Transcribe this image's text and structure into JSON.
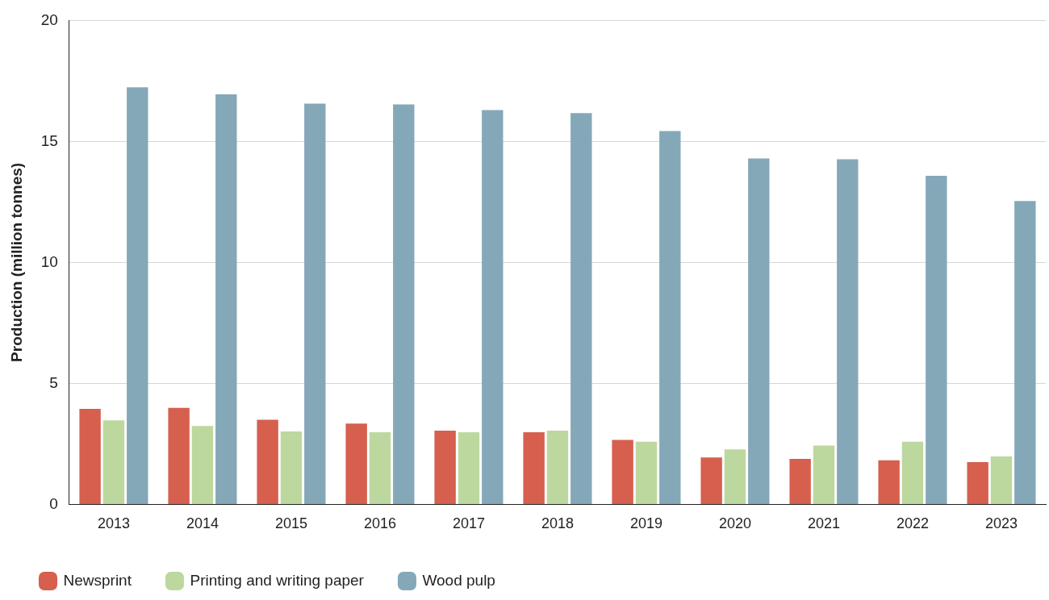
{
  "chart_data": {
    "type": "bar",
    "ylabel": "Production (million tonnes)",
    "categories": [
      "2013",
      "2014",
      "2015",
      "2016",
      "2017",
      "2018",
      "2019",
      "2020",
      "2021",
      "2022",
      "2023"
    ],
    "series": [
      {
        "name": "Newsprint",
        "color": "#d65f4e",
        "values": [
          3.95,
          3.99,
          3.5,
          3.34,
          3.05,
          2.98,
          2.66,
          1.94,
          1.88,
          1.82,
          1.75
        ]
      },
      {
        "name": "Printing and writing paper",
        "color": "#bdd89e",
        "values": [
          3.47,
          3.24,
          3.01,
          2.98,
          2.98,
          3.05,
          2.59,
          2.27,
          2.43,
          2.59,
          1.98
        ]
      },
      {
        "name": "Wood pulp",
        "color": "#84a8b8",
        "values": [
          17.24,
          16.95,
          16.56,
          16.53,
          16.3,
          16.17,
          15.43,
          14.3,
          14.26,
          13.58,
          12.54
        ]
      }
    ],
    "ylim": [
      0,
      20
    ],
    "yticks": [
      0,
      5,
      10,
      15,
      20
    ],
    "grid": "y",
    "legend": "bottom left"
  }
}
